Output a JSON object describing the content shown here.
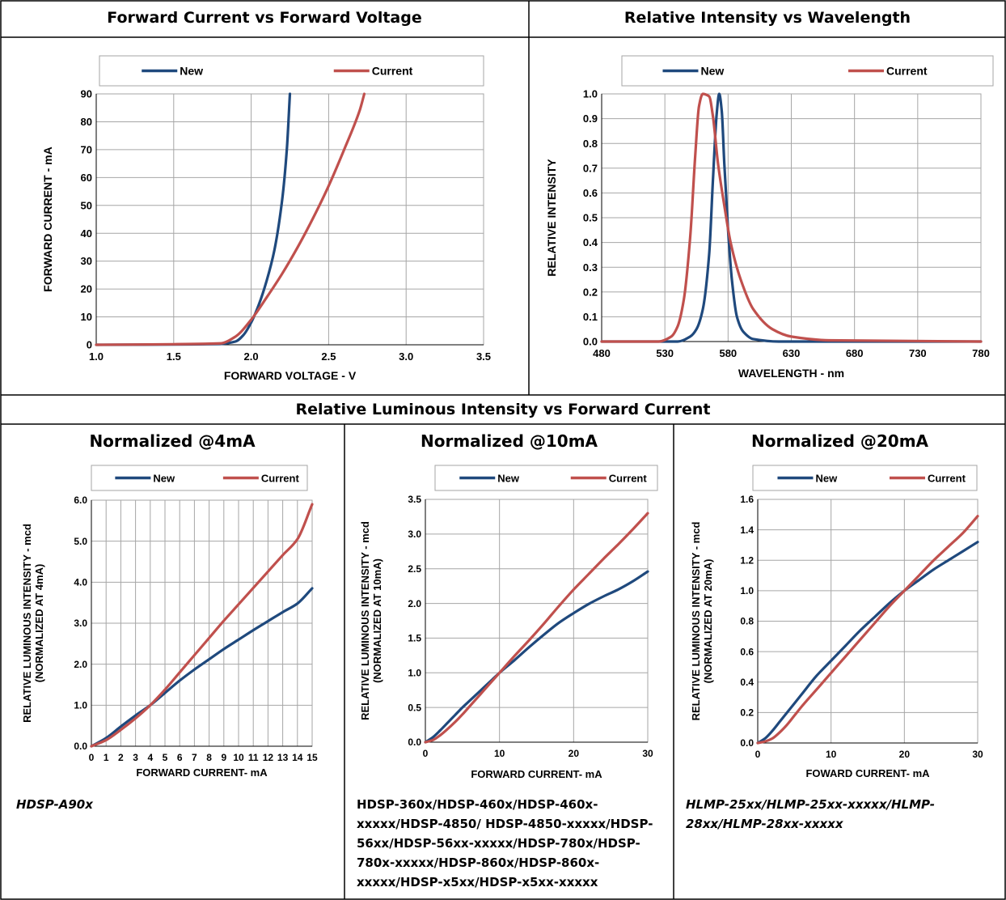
{
  "page": {
    "titles": {
      "iv": "Forward Current vs Forward Voltage",
      "spectrum": "Relative Intensity vs Wavelength",
      "luminous": "Relative Luminous Intensity vs Forward Current",
      "n4": "Normalized @4mA",
      "n10": "Normalized @10mA",
      "n20": "Normalized @20mA"
    },
    "notes": {
      "n4": "HDSP-A90x",
      "n10": "HDSP-360x/HDSP-460x/HDSP-460x-xxxxx/HDSP-4850/ HDSP-4850-xxxxx/HDSP-56xx/HDSP-56xx-xxxxx/HDSP-780x/HDSP-780x-xxxxx/HDSP-860x/HDSP-860x-xxxxx/HDSP-x5xx/HDSP-x5xx-xxxxx",
      "n20": "HLMP-25xx/HLMP-25xx-xxxxx/HLMP-28xx/HLMP-28xx-xxxxx"
    },
    "colors": {
      "new": "#1F497D",
      "current": "#C0504D",
      "grid": "#A6A6A6",
      "border": "#000000"
    }
  },
  "chart_data": [
    {
      "id": "iv",
      "type": "line",
      "xlabel": "FORWARD VOLTAGE - V",
      "ylabel": "FORWARD CURRENT - mA",
      "xlim": [
        1.0,
        3.5
      ],
      "ylim": [
        0,
        90
      ],
      "xticks": [
        1.0,
        1.5,
        2.0,
        2.5,
        3.0,
        3.5
      ],
      "yticks": [
        0,
        10,
        20,
        30,
        40,
        50,
        60,
        70,
        80,
        90
      ],
      "xdecimals": 1,
      "ydecimals": 0,
      "legend": [
        "New",
        "Current"
      ],
      "legend_position": "top",
      "grid": true,
      "series": [
        {
          "name": "New",
          "points": [
            [
              1.0,
              0.0
            ],
            [
              1.5,
              0.1
            ],
            [
              1.8,
              0.3
            ],
            [
              1.9,
              1.2
            ],
            [
              1.95,
              3.5
            ],
            [
              2.0,
              8.0
            ],
            [
              2.05,
              14.5
            ],
            [
              2.1,
              23.0
            ],
            [
              2.15,
              34.0
            ],
            [
              2.2,
              52.0
            ],
            [
              2.23,
              70.0
            ],
            [
              2.25,
              90.0
            ]
          ]
        },
        {
          "name": "Current",
          "points": [
            [
              1.0,
              0.0
            ],
            [
              1.5,
              0.2
            ],
            [
              1.8,
              0.5
            ],
            [
              1.9,
              3.0
            ],
            [
              2.0,
              9.0
            ],
            [
              2.1,
              17.0
            ],
            [
              2.2,
              25.5
            ],
            [
              2.3,
              35.0
            ],
            [
              2.4,
              45.5
            ],
            [
              2.5,
              57.0
            ],
            [
              2.6,
              70.0
            ],
            [
              2.7,
              84.0
            ],
            [
              2.73,
              90.0
            ]
          ]
        }
      ]
    },
    {
      "id": "spectrum",
      "type": "line",
      "xlabel": "WAVELENGTH - nm",
      "ylabel": "RELATIVE INTENSITY",
      "xlim": [
        480,
        780
      ],
      "ylim": [
        0.0,
        1.0
      ],
      "xticks": [
        480,
        530,
        580,
        630,
        680,
        730,
        780
      ],
      "yticks": [
        0.0,
        0.1,
        0.2,
        0.3,
        0.4,
        0.5,
        0.6,
        0.7,
        0.8,
        0.9,
        1.0
      ],
      "xdecimals": 0,
      "ydecimals": 1,
      "legend": [
        "New",
        "Current"
      ],
      "legend_position": "top",
      "grid": true,
      "series": [
        {
          "name": "New",
          "points": [
            [
              480,
              0.0
            ],
            [
              540,
              0.0
            ],
            [
              550,
              0.02
            ],
            [
              555,
              0.05
            ],
            [
              560,
              0.13
            ],
            [
              565,
              0.35
            ],
            [
              568,
              0.65
            ],
            [
              571,
              0.92
            ],
            [
              573,
              1.0
            ],
            [
              575,
              0.93
            ],
            [
              577,
              0.72
            ],
            [
              580,
              0.45
            ],
            [
              583,
              0.25
            ],
            [
              587,
              0.1
            ],
            [
              592,
              0.04
            ],
            [
              600,
              0.01
            ],
            [
              620,
              0.0
            ],
            [
              780,
              0.0
            ]
          ]
        },
        {
          "name": "Current",
          "points": [
            [
              480,
              0.0
            ],
            [
              525,
              0.0
            ],
            [
              535,
              0.02
            ],
            [
              540,
              0.06
            ],
            [
              545,
              0.17
            ],
            [
              550,
              0.42
            ],
            [
              554,
              0.75
            ],
            [
              557,
              0.95
            ],
            [
              560,
              1.0
            ],
            [
              565,
              0.99
            ],
            [
              568,
              0.91
            ],
            [
              572,
              0.72
            ],
            [
              577,
              0.55
            ],
            [
              582,
              0.4
            ],
            [
              590,
              0.25
            ],
            [
              600,
              0.13
            ],
            [
              615,
              0.05
            ],
            [
              630,
              0.02
            ],
            [
              660,
              0.005
            ],
            [
              780,
              0.0
            ]
          ]
        }
      ]
    },
    {
      "id": "n4",
      "type": "line",
      "xlabel": "FORWARD CURRENT- mA",
      "ylabel": "RELATIVE LUMINOUS INTENSITY - mcd",
      "ylabel2": "(NORMALIZED AT 4mA)",
      "xlim": [
        0,
        15
      ],
      "ylim": [
        0.0,
        6.0
      ],
      "xticks": [
        0,
        1,
        2,
        3,
        4,
        5,
        6,
        7,
        8,
        9,
        10,
        11,
        12,
        13,
        14,
        15
      ],
      "yticks": [
        0.0,
        1.0,
        2.0,
        3.0,
        4.0,
        5.0,
        6.0
      ],
      "xdecimals": 0,
      "ydecimals": 1,
      "legend": [
        "New",
        "Current"
      ],
      "legend_position": "top",
      "grid": true,
      "series": [
        {
          "name": "New",
          "points": [
            [
              0,
              0.0
            ],
            [
              1,
              0.2
            ],
            [
              2,
              0.48
            ],
            [
              3,
              0.75
            ],
            [
              4,
              1.0
            ],
            [
              5,
              1.3
            ],
            [
              6,
              1.6
            ],
            [
              7,
              1.87
            ],
            [
              8,
              2.12
            ],
            [
              9,
              2.37
            ],
            [
              10,
              2.6
            ],
            [
              11,
              2.83
            ],
            [
              12,
              3.05
            ],
            [
              13,
              3.27
            ],
            [
              14,
              3.48
            ],
            [
              15,
              3.85
            ]
          ]
        },
        {
          "name": "Current",
          "points": [
            [
              0,
              0.0
            ],
            [
              1,
              0.15
            ],
            [
              2,
              0.4
            ],
            [
              3,
              0.68
            ],
            [
              4,
              1.0
            ],
            [
              5,
              1.38
            ],
            [
              6,
              1.8
            ],
            [
              7,
              2.22
            ],
            [
              8,
              2.64
            ],
            [
              9,
              3.06
            ],
            [
              10,
              3.46
            ],
            [
              11,
              3.86
            ],
            [
              12,
              4.26
            ],
            [
              13,
              4.66
            ],
            [
              14,
              5.05
            ],
            [
              15,
              5.9
            ]
          ]
        }
      ]
    },
    {
      "id": "n10",
      "type": "line",
      "xlabel": "FORWARD CURRENT- mA",
      "ylabel": "RELATIVE LUMINOUS INTENSITY - mcd",
      "ylabel2": "(NORMALIZED AT 10mA)",
      "xlim": [
        0,
        30
      ],
      "ylim": [
        0.0,
        3.5
      ],
      "xticks": [
        0,
        10,
        20,
        30
      ],
      "yticks": [
        0.0,
        0.5,
        1.0,
        1.5,
        2.0,
        2.5,
        3.0,
        3.5
      ],
      "xdecimals": 0,
      "ydecimals": 1,
      "legend": [
        "New",
        "Current"
      ],
      "legend_position": "top",
      "grid": true,
      "series": [
        {
          "name": "New",
          "points": [
            [
              0,
              0.0
            ],
            [
              1,
              0.07
            ],
            [
              2,
              0.17
            ],
            [
              3,
              0.28
            ],
            [
              4,
              0.39
            ],
            [
              5,
              0.5
            ],
            [
              6,
              0.6
            ],
            [
              7,
              0.7
            ],
            [
              8,
              0.8
            ],
            [
              9,
              0.9
            ],
            [
              10,
              1.0
            ],
            [
              12,
              1.18
            ],
            [
              14,
              1.37
            ],
            [
              16,
              1.55
            ],
            [
              18,
              1.72
            ],
            [
              20,
              1.86
            ],
            [
              22,
              1.99
            ],
            [
              24,
              2.1
            ],
            [
              26,
              2.2
            ],
            [
              28,
              2.32
            ],
            [
              30,
              2.46
            ]
          ]
        },
        {
          "name": "Current",
          "points": [
            [
              0,
              0.0
            ],
            [
              1,
              0.03
            ],
            [
              2,
              0.1
            ],
            [
              3,
              0.19
            ],
            [
              4,
              0.29
            ],
            [
              5,
              0.4
            ],
            [
              6,
              0.52
            ],
            [
              7,
              0.64
            ],
            [
              8,
              0.76
            ],
            [
              9,
              0.88
            ],
            [
              10,
              1.0
            ],
            [
              12,
              1.24
            ],
            [
              14,
              1.47
            ],
            [
              16,
              1.71
            ],
            [
              18,
              1.96
            ],
            [
              20,
              2.2
            ],
            [
              22,
              2.42
            ],
            [
              24,
              2.64
            ],
            [
              26,
              2.85
            ],
            [
              28,
              3.07
            ],
            [
              30,
              3.3
            ]
          ]
        }
      ]
    },
    {
      "id": "n20",
      "type": "line",
      "xlabel": "FOWARD CURRENT- mA",
      "ylabel": "RELATIVE LUMINOUS INTENSITY - mcd",
      "ylabel2": "(NORMALIZED AT 20mA)",
      "xlim": [
        0,
        30
      ],
      "ylim": [
        0.0,
        1.6
      ],
      "xticks": [
        0,
        10,
        20,
        30
      ],
      "yticks": [
        0.0,
        0.2,
        0.4,
        0.6,
        0.8,
        1.0,
        1.2,
        1.4,
        1.6
      ],
      "xdecimals": 0,
      "ydecimals": 1,
      "legend": [
        "New",
        "Current"
      ],
      "legend_position": "top",
      "grid": true,
      "series": [
        {
          "name": "New",
          "points": [
            [
              0,
              0.0
            ],
            [
              1,
              0.03
            ],
            [
              2,
              0.08
            ],
            [
              3,
              0.14
            ],
            [
              4,
              0.2
            ],
            [
              5,
              0.26
            ],
            [
              6,
              0.32
            ],
            [
              8,
              0.44
            ],
            [
              10,
              0.54
            ],
            [
              12,
              0.64
            ],
            [
              14,
              0.74
            ],
            [
              16,
              0.83
            ],
            [
              18,
              0.92
            ],
            [
              20,
              1.0
            ],
            [
              22,
              1.07
            ],
            [
              24,
              1.14
            ],
            [
              26,
              1.2
            ],
            [
              28,
              1.26
            ],
            [
              30,
              1.32
            ]
          ]
        },
        {
          "name": "Current",
          "points": [
            [
              0,
              0.0
            ],
            [
              1,
              0.01
            ],
            [
              2,
              0.03
            ],
            [
              3,
              0.07
            ],
            [
              4,
              0.12
            ],
            [
              5,
              0.18
            ],
            [
              6,
              0.24
            ],
            [
              8,
              0.35
            ],
            [
              10,
              0.46
            ],
            [
              12,
              0.57
            ],
            [
              14,
              0.68
            ],
            [
              16,
              0.79
            ],
            [
              18,
              0.9
            ],
            [
              20,
              1.0
            ],
            [
              22,
              1.1
            ],
            [
              24,
              1.2
            ],
            [
              26,
              1.29
            ],
            [
              28,
              1.38
            ],
            [
              30,
              1.49
            ]
          ]
        }
      ]
    }
  ]
}
